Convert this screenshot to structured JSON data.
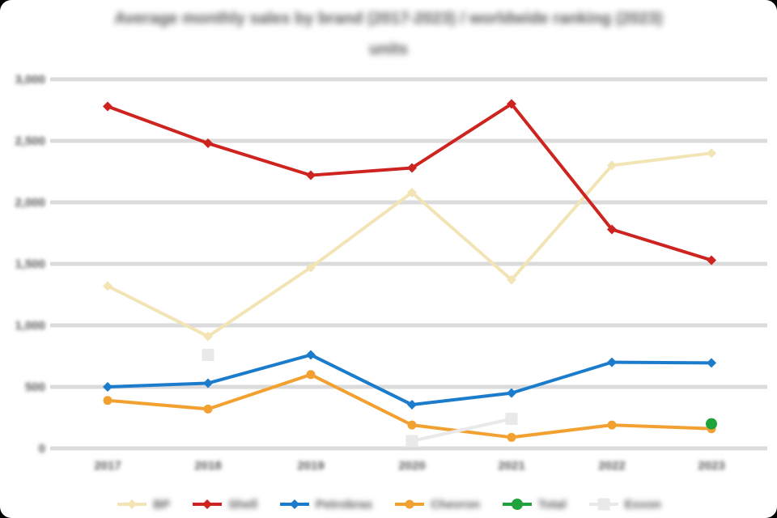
{
  "title": {
    "line1": "Average monthly sales by brand (2017-2023) / worldwide ranking (2023)",
    "line2": "units"
  },
  "colors": {
    "background": "#ffffff",
    "gridline": "#dbdbdb",
    "text": "#595959"
  },
  "chart_data": {
    "type": "line",
    "title": "Average monthly sales by brand (2017-2023) / worldwide ranking (2023) units",
    "categories": [
      "2017",
      "2018",
      "2019",
      "2020",
      "2021",
      "2022",
      "2023"
    ],
    "xlabel": "",
    "ylabel": "",
    "ylim": [
      0,
      3000
    ],
    "y_tick_step": 500,
    "y_tick_labels": [
      "3,000",
      "2,500",
      "2,000",
      "1,500",
      "1,000",
      "500",
      "0"
    ],
    "grid": true,
    "legend_position": "bottom",
    "series": [
      {
        "name": "BP",
        "color": "#f2e4b4",
        "marker": "diamond",
        "values": [
          1320,
          910,
          1470,
          2080,
          1370,
          2300,
          2400
        ]
      },
      {
        "name": "Shell",
        "color": "#ce2420",
        "marker": "diamond",
        "values": [
          2780,
          2480,
          2220,
          2280,
          2800,
          1780,
          1530
        ]
      },
      {
        "name": "Petrobras",
        "color": "#1c7ccc",
        "marker": "diamond",
        "values": [
          500,
          530,
          760,
          355,
          450,
          700,
          695
        ]
      },
      {
        "name": "Chevron",
        "color": "#f2a131",
        "marker": "circle",
        "values": [
          390,
          320,
          600,
          190,
          90,
          190,
          160
        ]
      },
      {
        "name": "Total",
        "color": "#1fa33c",
        "marker": "circle",
        "values": [
          null,
          null,
          null,
          null,
          null,
          null,
          200
        ]
      },
      {
        "name": "Exxon",
        "color": "#e9e9e9",
        "marker": "square",
        "values": [
          null,
          760,
          null,
          60,
          240,
          null,
          null
        ]
      }
    ]
  }
}
